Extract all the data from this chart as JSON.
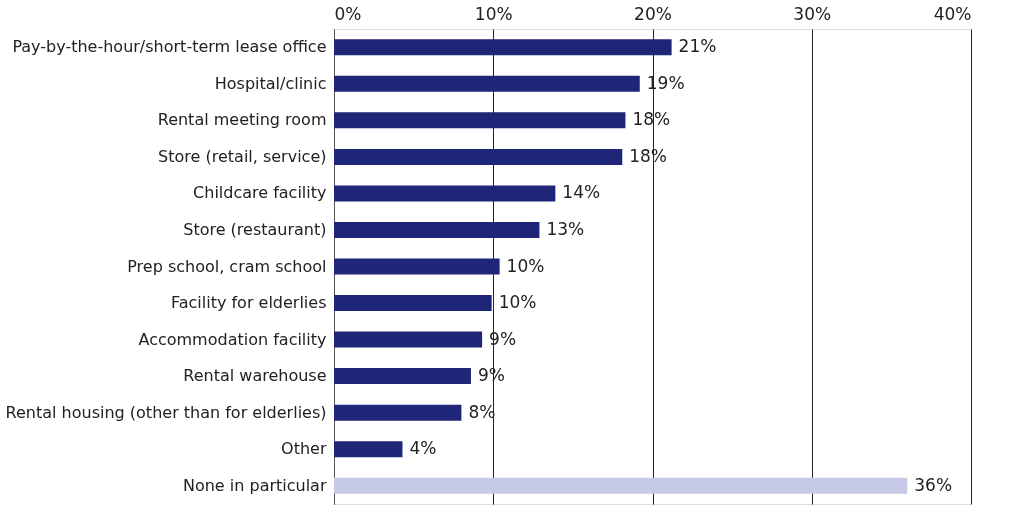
{
  "chart_data": {
    "type": "bar",
    "orientation": "horizontal",
    "categories": [
      "Pay-by-the-hour/short-term lease office",
      "Hospital/clinic",
      "Rental meeting room",
      "Store (retail, service)",
      "Childcare facility",
      "Store (restaurant)",
      "Prep school, cram school",
      "Facility for elderlies",
      "Accommodation facility",
      "Rental warehouse",
      "Rental housing (other than for elderlies)",
      "Other",
      "None in particular"
    ],
    "values": [
      21.2,
      19.2,
      18.3,
      18.1,
      13.9,
      12.9,
      10.4,
      9.9,
      9.3,
      8.6,
      8.0,
      4.3,
      36.0
    ],
    "value_labels": [
      "21%",
      "19%",
      "18%",
      "18%",
      "14%",
      "13%",
      "10%",
      "10%",
      "9%",
      "9%",
      "8%",
      "4%",
      "36%"
    ],
    "colors": [
      "#1f2677",
      "#1f2677",
      "#1f2677",
      "#1f2677",
      "#1f2677",
      "#1f2677",
      "#1f2677",
      "#1f2677",
      "#1f2677",
      "#1f2677",
      "#1f2677",
      "#1f2677",
      "#c6c9e5"
    ],
    "xlim": [
      0,
      40
    ],
    "xticks": [
      {
        "value": 0,
        "label": "0%"
      },
      {
        "value": 10,
        "label": "10%"
      },
      {
        "value": 20,
        "label": "20%"
      },
      {
        "value": 30,
        "label": "30%"
      },
      {
        "value": 40,
        "label": "40%"
      }
    ],
    "grid": "x"
  }
}
